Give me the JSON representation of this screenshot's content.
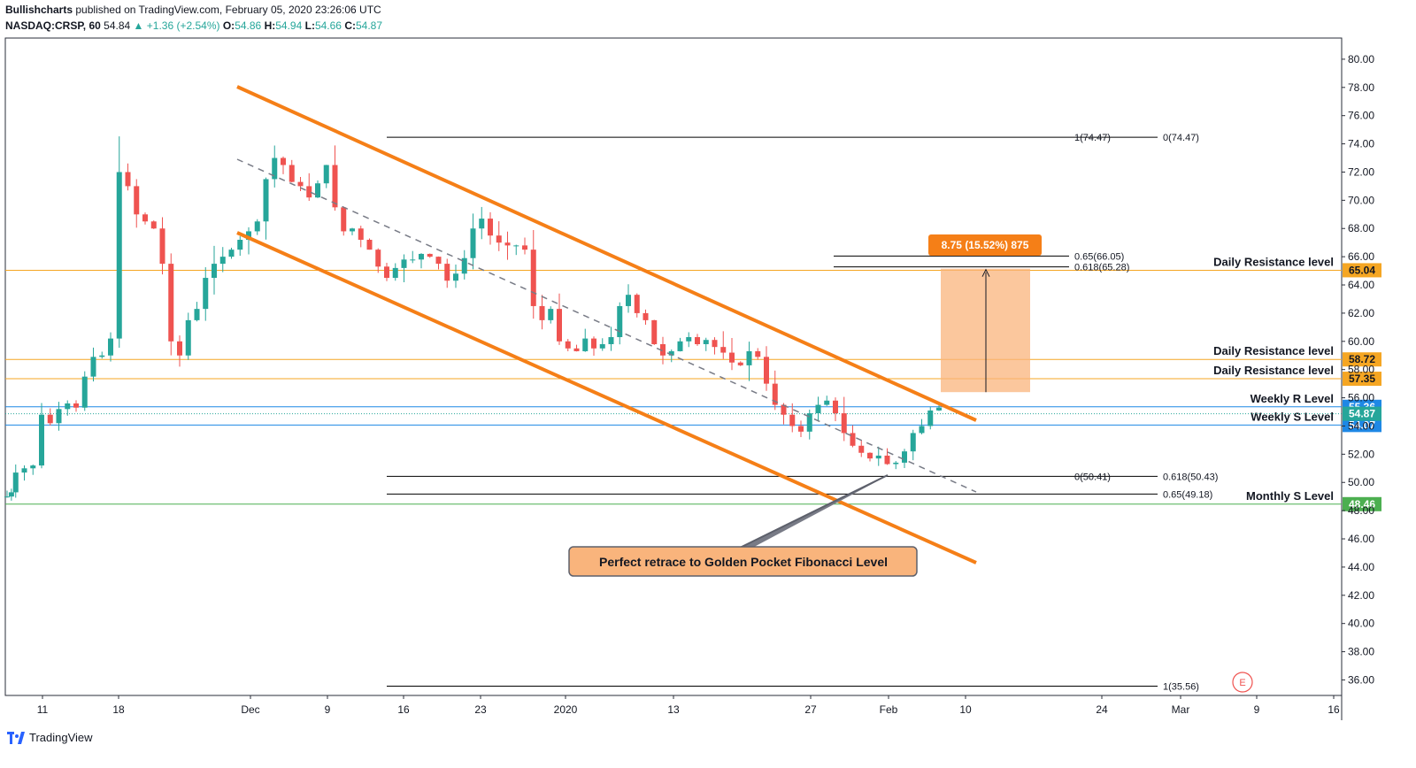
{
  "header": {
    "author": "Bullishcharts",
    "published": "published on TradingView.com, February 05, 2020 23:26:06 UTC",
    "symbol": "NASDAQ:CRSP, 60",
    "last": "54.84",
    "change": "+1.36 (+2.54%)",
    "o_label": "O:",
    "o": "54.86",
    "h_label": "H:",
    "h": "54.94",
    "l_label": "L:",
    "l": "54.66",
    "c_label": "C:",
    "c": "54.87"
  },
  "footer": {
    "brand": "TradingView"
  },
  "colors": {
    "up": "#26a69a",
    "down": "#ef5350",
    "channel": "#f57f17",
    "resistance": "#f5a623",
    "weekly": "#1e88e5",
    "monthly": "#4caf50",
    "fib": "#000000",
    "box": "#f9b47c",
    "label_bg": "#f9b47c"
  },
  "chart_data": {
    "type": "candlestick",
    "title": "",
    "ylim": [
      34.9,
      81.5
    ],
    "x_ticks": [
      "11",
      "18",
      "Dec",
      "9",
      "16",
      "23",
      "2020",
      "13",
      "27",
      "Feb",
      "10",
      "24",
      "Mar",
      "9",
      "16"
    ],
    "y_ticks": [
      "80.00",
      "78.00",
      "76.00",
      "74.00",
      "72.00",
      "70.00",
      "68.00",
      "66.00",
      "64.00",
      "62.00",
      "60.00",
      "58.00",
      "56.00",
      "54.00",
      "52.00",
      "50.00",
      "48.00",
      "46.00",
      "44.00",
      "42.00",
      "40.00",
      "38.00",
      "36.00"
    ],
    "price_path": [
      [
        0,
        49.0
      ],
      [
        0.5,
        49.3
      ],
      [
        1,
        50.7
      ],
      [
        2,
        51.0
      ],
      [
        3,
        51.2
      ],
      [
        4,
        54.8
      ],
      [
        5,
        54.2
      ],
      [
        6,
        55.2
      ],
      [
        7,
        55.6
      ],
      [
        8,
        55.3
      ],
      [
        9,
        57.5
      ],
      [
        10,
        58.9
      ],
      [
        11,
        59.0
      ],
      [
        12,
        60.2
      ],
      [
        13,
        72.0
      ],
      [
        14,
        71.0
      ],
      [
        15,
        69.0
      ],
      [
        16,
        68.5
      ],
      [
        17,
        68.0
      ],
      [
        18,
        65.5
      ],
      [
        19,
        60.0
      ],
      [
        20,
        59.0
      ],
      [
        21,
        61.5
      ],
      [
        22,
        62.3
      ],
      [
        23,
        64.5
      ],
      [
        24,
        65.5
      ],
      [
        25,
        66.0
      ],
      [
        26,
        66.5
      ],
      [
        27,
        67.2
      ],
      [
        28,
        67.8
      ],
      [
        29,
        68.5
      ],
      [
        30,
        71.5
      ],
      [
        31,
        73.0
      ],
      [
        32,
        72.5
      ],
      [
        33,
        71.3
      ],
      [
        34,
        71.0
      ],
      [
        35,
        70.2
      ],
      [
        36,
        71.2
      ],
      [
        37,
        72.5
      ],
      [
        38,
        69.5
      ],
      [
        39,
        67.8
      ],
      [
        40,
        68.0
      ],
      [
        41,
        67.2
      ],
      [
        42,
        66.5
      ],
      [
        43,
        65.3
      ],
      [
        44,
        64.5
      ],
      [
        45,
        65.2
      ],
      [
        46,
        65.8
      ],
      [
        47,
        65.8
      ],
      [
        48,
        66.2
      ],
      [
        49,
        66.0
      ],
      [
        50,
        65.5
      ],
      [
        51,
        64.3
      ],
      [
        52,
        64.8
      ],
      [
        53,
        65.9
      ],
      [
        54,
        68.0
      ],
      [
        55,
        68.7
      ],
      [
        56,
        67.5
      ],
      [
        57,
        67.0
      ],
      [
        58,
        66.8
      ],
      [
        59,
        66.8
      ],
      [
        60,
        66.5
      ],
      [
        61,
        62.5
      ],
      [
        62,
        61.5
      ],
      [
        63,
        62.3
      ],
      [
        64,
        60.0
      ],
      [
        65,
        59.5
      ],
      [
        66,
        59.3
      ],
      [
        67,
        60.2
      ],
      [
        68,
        59.5
      ],
      [
        69,
        59.8
      ],
      [
        70,
        60.3
      ],
      [
        71,
        62.5
      ],
      [
        72,
        63.3
      ],
      [
        73,
        62.0
      ],
      [
        74,
        61.5
      ],
      [
        75,
        59.8
      ],
      [
        76,
        59.0
      ],
      [
        77,
        59.3
      ],
      [
        78,
        60.0
      ],
      [
        79,
        60.3
      ],
      [
        80,
        59.8
      ],
      [
        81,
        60.1
      ],
      [
        82,
        59.6
      ],
      [
        83,
        59.2
      ],
      [
        84,
        58.5
      ],
      [
        85,
        58.3
      ],
      [
        86,
        59.3
      ],
      [
        87,
        58.9
      ],
      [
        88,
        57.0
      ],
      [
        89,
        55.5
      ],
      [
        90,
        54.8
      ],
      [
        91,
        54.0
      ],
      [
        92,
        53.6
      ],
      [
        93,
        54.9
      ],
      [
        94,
        55.5
      ],
      [
        95,
        55.8
      ],
      [
        96,
        54.9
      ],
      [
        97,
        53.5
      ],
      [
        98,
        52.6
      ],
      [
        99,
        52.1
      ],
      [
        100,
        51.7
      ],
      [
        101,
        51.9
      ],
      [
        102,
        51.3
      ],
      [
        103,
        51.4
      ],
      [
        104,
        52.2
      ],
      [
        105,
        53.5
      ],
      [
        106,
        54.0
      ],
      [
        107,
        55.1
      ],
      [
        108,
        55.3
      ]
    ],
    "annotations": {
      "label_box": "Perfect retrace to Golden Pocket Fibonacci Level",
      "measure_label": "8.75 (15.52%) 875",
      "earnings_marker": "E"
    },
    "horizontal_levels": [
      {
        "price": 65.04,
        "label": "Daily Resistance level",
        "tag": "65.04",
        "color": "resistance"
      },
      {
        "price": 58.72,
        "label": "Daily Resistance level",
        "tag": "58.72",
        "color": "resistance"
      },
      {
        "price": 57.35,
        "label": "Daily Resistance level",
        "tag": "57.35",
        "color": "resistance"
      },
      {
        "price": 55.36,
        "label": "Weekly R Level",
        "tag": "55.36",
        "color": "weekly"
      },
      {
        "price": 54.07,
        "label": "Weekly S Level",
        "tag": "54.07",
        "color": "weekly"
      },
      {
        "price": 48.46,
        "label": "Monthly S Level",
        "tag": "48.46",
        "color": "monthly"
      }
    ],
    "current_price": {
      "price": 54.87,
      "tag": "54.87"
    },
    "fib_levels": [
      {
        "price": 74.47,
        "left_label": "1(74.47)",
        "right_label": "0(74.47)"
      },
      {
        "price": 66.05,
        "right_label": "0.65(66.05)"
      },
      {
        "price": 65.28,
        "right_label": "0.618(65.28)"
      },
      {
        "price": 50.43,
        "left_label": "0(50.41)",
        "right_label": "0.618(50.43)"
      },
      {
        "price": 49.18,
        "right_label": "0.65(49.18)"
      },
      {
        "price": 35.56,
        "right_label": "1(35.56)"
      }
    ]
  }
}
